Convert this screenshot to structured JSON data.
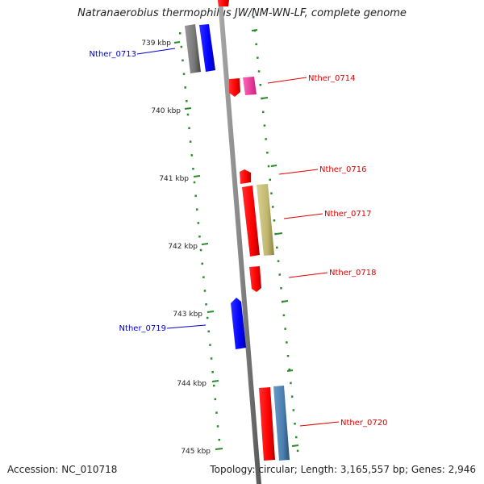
{
  "title": "Natranaerobius thermophilus JW/NM-WN-LF, complete genome",
  "footer": {
    "accession": "Accession: NC_010718",
    "topology": "Topology: circular; Length: 3,165,557 bp; Genes: 2,946"
  },
  "colors": {
    "forward": "#ff0000",
    "reverse": "#0000ff",
    "grey": "#777777",
    "pink": "#ff44aa",
    "olive": "#c8c070",
    "steel": "#4a7fb0",
    "tick": "#2a8a2a",
    "backbone": "#888888"
  },
  "kbp_ticks": [
    "739 kbp",
    "740 kbp",
    "741 kbp",
    "742 kbp",
    "743 kbp",
    "744 kbp",
    "745 kbp"
  ],
  "gene_labels": [
    {
      "name": "Nther_0713",
      "side": "left",
      "strand": "reverse"
    },
    {
      "name": "Nther_0714",
      "side": "right",
      "strand": "forward"
    },
    {
      "name": "Nther_0716",
      "side": "right",
      "strand": "forward"
    },
    {
      "name": "Nther_0717",
      "side": "right",
      "strand": "forward"
    },
    {
      "name": "Nther_0718",
      "side": "right",
      "strand": "forward"
    },
    {
      "name": "Nther_0719",
      "side": "left",
      "strand": "reverse"
    },
    {
      "name": "Nther_0720",
      "side": "right",
      "strand": "forward"
    }
  ]
}
